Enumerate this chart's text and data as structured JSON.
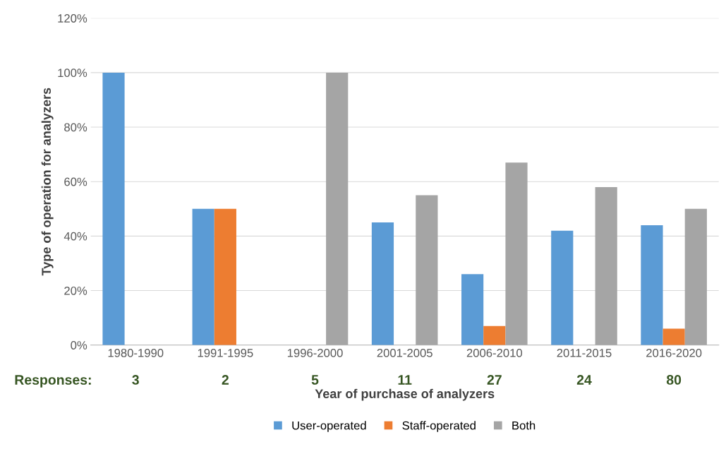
{
  "chart_data": {
    "type": "bar",
    "xlabel": "Year of purchase of analyzers",
    "ylabel": "Type of operation for analyzers",
    "categories": [
      "1980-1990",
      "1991-1995",
      "1996-2000",
      "2001-2005",
      "2006-2010",
      "2011-2015",
      "2016-2020"
    ],
    "series": [
      {
        "name": "User-operated",
        "color": "#5b9bd5",
        "values": [
          100,
          50,
          0,
          45,
          26,
          42,
          44
        ]
      },
      {
        "name": "Staff-operated",
        "color": "#ed7d31",
        "values": [
          0,
          50,
          0,
          0,
          7,
          0,
          6
        ]
      },
      {
        "name": "Both",
        "color": "#a5a5a5",
        "values": [
          0,
          0,
          100,
          55,
          67,
          58,
          50
        ]
      }
    ],
    "ylim": [
      0,
      120
    ],
    "yticks": [
      {
        "value": 0,
        "label": "0%"
      },
      {
        "value": 20,
        "label": "20%"
      },
      {
        "value": 40,
        "label": "40%"
      },
      {
        "value": 60,
        "label": "60%"
      },
      {
        "value": 80,
        "label": "80%"
      },
      {
        "value": 100,
        "label": "100%"
      },
      {
        "value": 120,
        "label": "120%"
      }
    ],
    "grid": "y",
    "legend": "bottom",
    "annotations": [
      "Responses:",
      "3",
      "2",
      "5",
      "11",
      "27",
      "24",
      "80"
    ]
  }
}
